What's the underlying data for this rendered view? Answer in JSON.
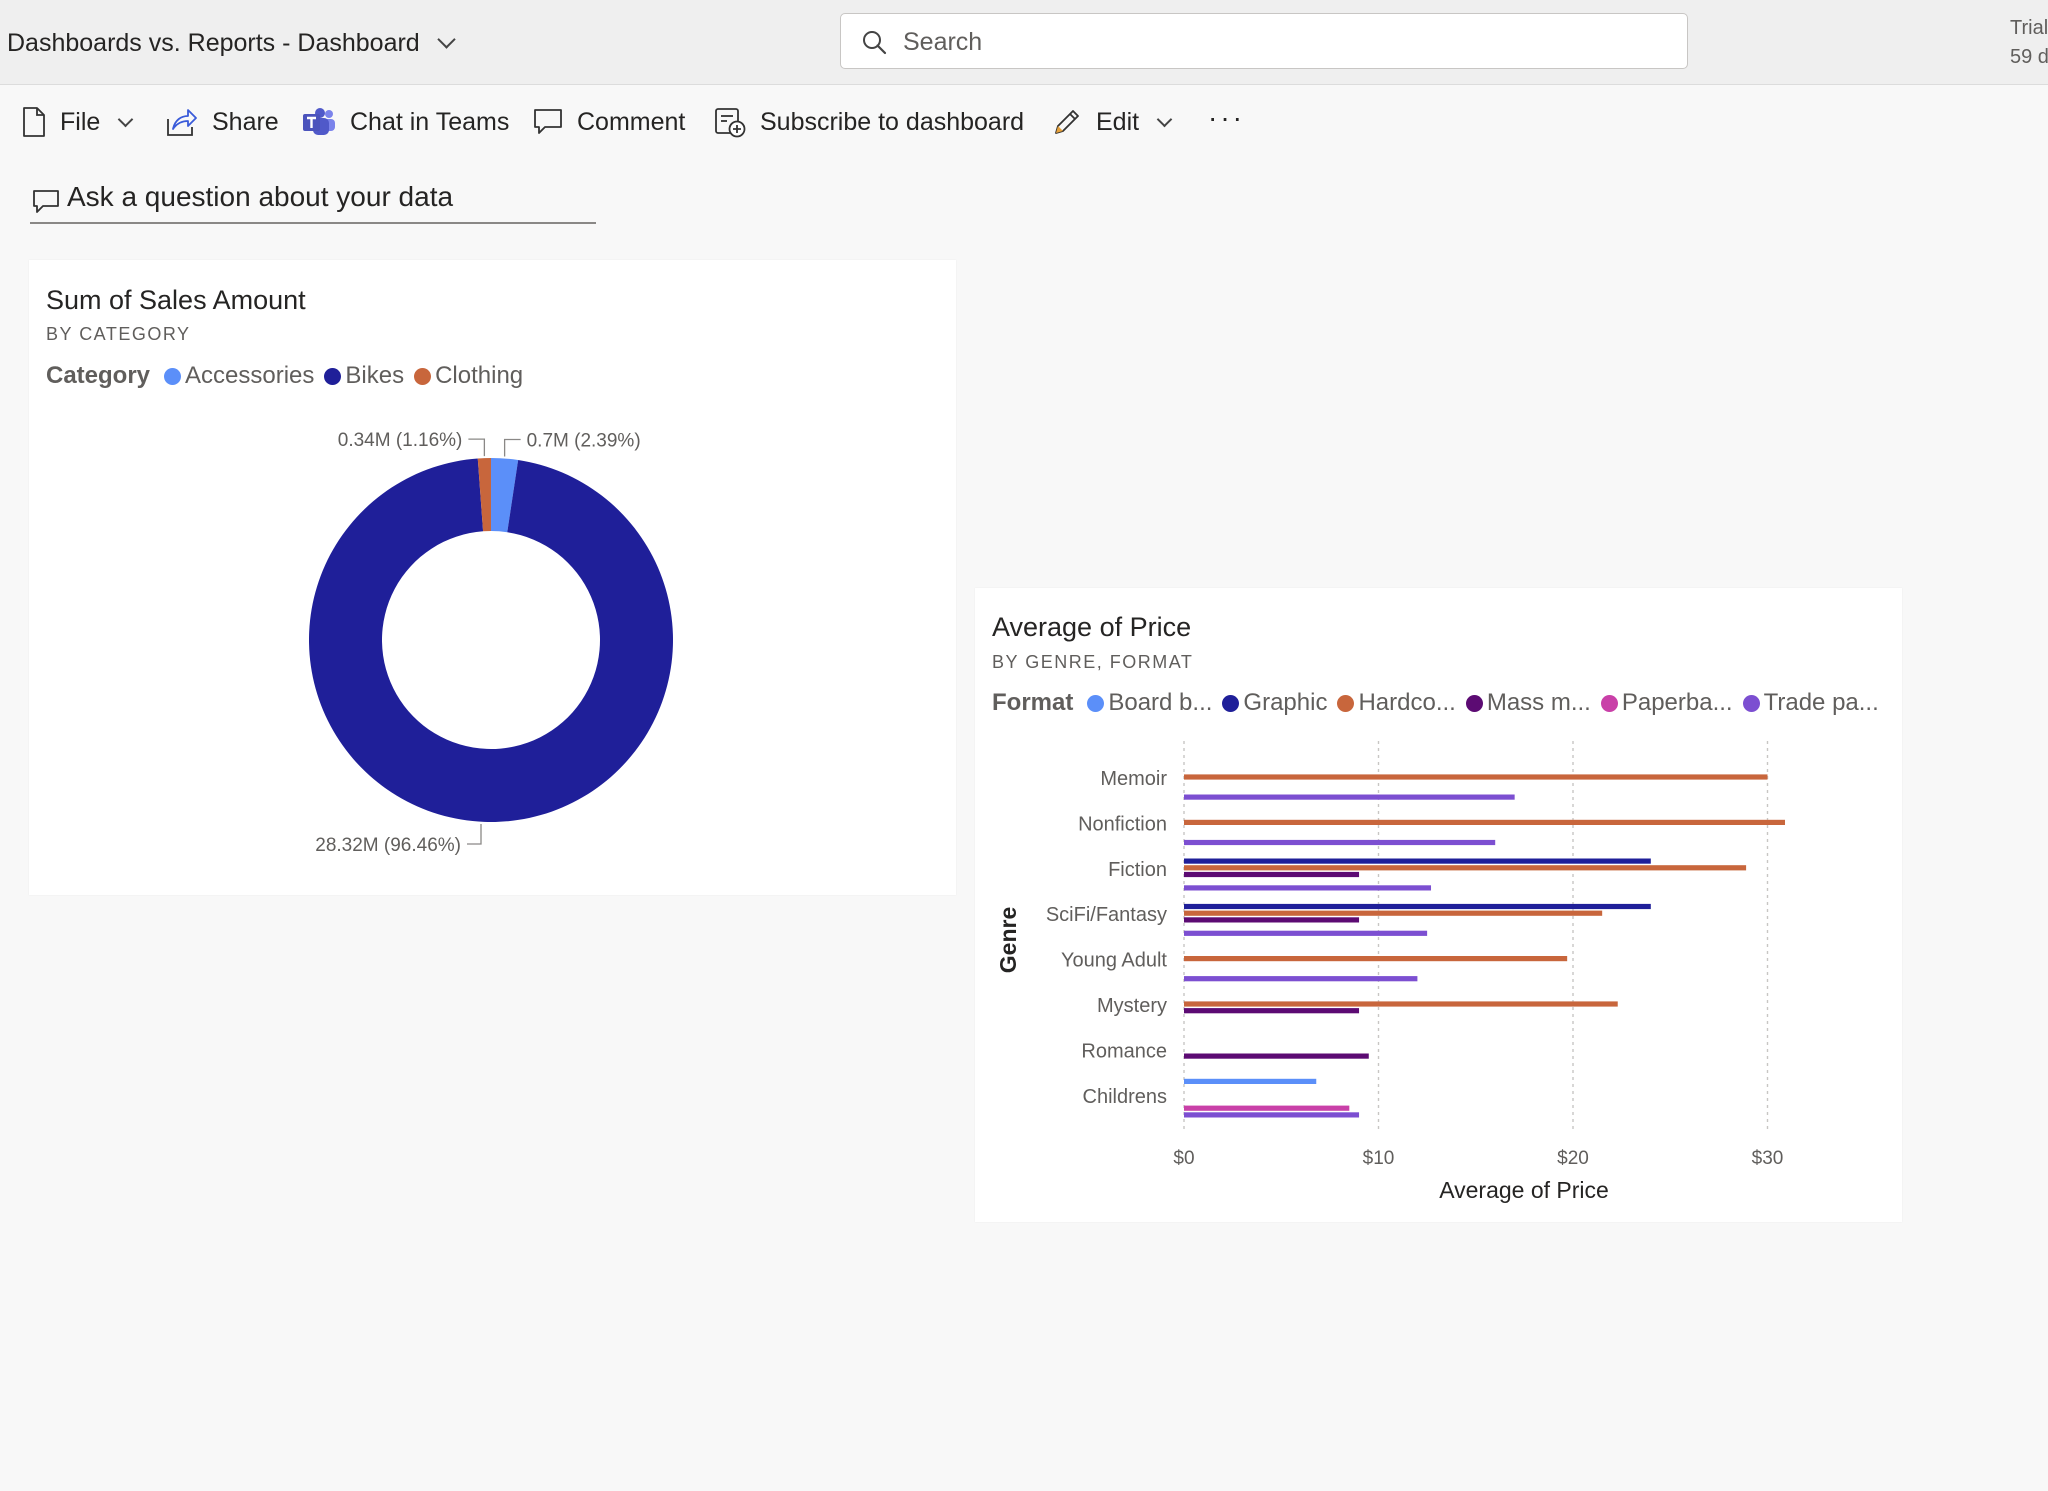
{
  "header": {
    "title": "Dashboards vs. Reports - Dashboard",
    "search_placeholder": "Search",
    "trial_line1": "Trial",
    "trial_line2": "59 d"
  },
  "toolbar": {
    "file": "File",
    "share": "Share",
    "chat": "Chat in Teams",
    "comment": "Comment",
    "subscribe": "Subscribe to dashboard",
    "edit": "Edit",
    "more": "···"
  },
  "qa": {
    "placeholder": "Ask a question about your data"
  },
  "colors": {
    "accessories": "#5b8ff9",
    "bikes": "#1f1f99",
    "clothing": "#c8663c",
    "board": "#5b8ff9",
    "graphic": "#1f1f99",
    "hardcover": "#c8663c",
    "mass": "#5c0b73",
    "paperback": "#c940a8",
    "trade": "#7c4fd1"
  },
  "donut_tile": {
    "title": "Sum of Sales Amount",
    "subtitle": "BY CATEGORY",
    "legend_title": "Category",
    "legend": [
      "Accessories",
      "Bikes",
      "Clothing"
    ]
  },
  "bar_tile": {
    "title": "Average of Price",
    "subtitle": "BY GENRE, FORMAT",
    "legend_title": "Format",
    "legend": [
      "Board b...",
      "Graphic",
      "Hardco...",
      "Mass m...",
      "Paperba...",
      "Trade pa..."
    ]
  },
  "chart_data": [
    {
      "type": "pie",
      "title": "Sum of Sales Amount",
      "subtitle": "BY CATEGORY",
      "donut": true,
      "categories": [
        "Accessories",
        "Bikes",
        "Clothing"
      ],
      "values": [
        0.7,
        28.32,
        0.34
      ],
      "unit": "M",
      "data_labels": [
        "0.7M (2.39%)",
        "28.32M (96.46%)",
        "0.34M (1.16%)"
      ],
      "percentages": [
        2.39,
        96.46,
        1.16
      ],
      "legend_title": "Category",
      "legend_position": "top-left"
    },
    {
      "type": "bar",
      "orientation": "horizontal",
      "title": "Average of Price",
      "subtitle": "BY GENRE, FORMAT",
      "xlabel": "Average of Price",
      "ylabel": "Genre",
      "xlim": [
        0,
        33
      ],
      "xticks": [
        "$0",
        "$10",
        "$20",
        "$30"
      ],
      "xtick_values": [
        0,
        10,
        20,
        30
      ],
      "grid": true,
      "categories": [
        "Memoir",
        "Nonfiction",
        "Fiction",
        "SciFi/Fantasy",
        "Young Adult",
        "Mystery",
        "Romance",
        "Childrens"
      ],
      "series": [
        {
          "name": "Board b...",
          "values": [
            null,
            null,
            null,
            null,
            null,
            null,
            null,
            6.8
          ]
        },
        {
          "name": "Graphic",
          "values": [
            null,
            null,
            24.0,
            24.0,
            null,
            null,
            null,
            null
          ]
        },
        {
          "name": "Hardco...",
          "values": [
            30.0,
            30.9,
            28.9,
            21.5,
            19.7,
            22.3,
            null,
            null
          ]
        },
        {
          "name": "Mass m...",
          "values": [
            null,
            null,
            9.0,
            9.0,
            null,
            9.0,
            9.5,
            null
          ]
        },
        {
          "name": "Paperba...",
          "values": [
            null,
            null,
            null,
            null,
            null,
            null,
            null,
            8.5
          ]
        },
        {
          "name": "Trade pa...",
          "values": [
            17.0,
            16.0,
            12.7,
            12.5,
            12.0,
            null,
            null,
            9.0
          ]
        }
      ],
      "legend_title": "Format",
      "legend_position": "top-left"
    }
  ]
}
